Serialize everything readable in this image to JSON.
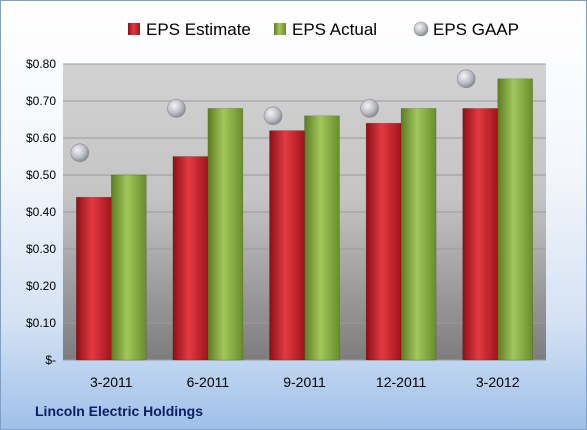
{
  "company": "Lincoln Electric Holdings",
  "chart_data": {
    "type": "bar",
    "title": "",
    "xlabel": "",
    "ylabel": "",
    "categories": [
      "3-2011",
      "6-2011",
      "9-2011",
      "12-2011",
      "3-2012"
    ],
    "series": [
      {
        "name": "EPS Estimate",
        "kind": "bar",
        "color": "#c8202a",
        "values": [
          0.44,
          0.55,
          0.62,
          0.64,
          0.68
        ]
      },
      {
        "name": "EPS Actual",
        "kind": "bar",
        "color": "#86ac3f",
        "values": [
          0.5,
          0.68,
          0.66,
          0.68,
          0.76
        ]
      },
      {
        "name": "EPS GAAP",
        "kind": "marker",
        "color": "#b9bcc2",
        "values": [
          0.56,
          0.68,
          0.66,
          0.68,
          0.76
        ]
      }
    ],
    "ylim": [
      0,
      0.8
    ],
    "yticks": [
      0,
      0.1,
      0.2,
      0.3,
      0.4,
      0.5,
      0.6,
      0.7,
      0.8
    ],
    "ytick_labels": [
      "$-",
      "$0.10",
      "$0.20",
      "$0.30",
      "$0.40",
      "$0.50",
      "$0.60",
      "$0.70",
      "$0.80"
    ],
    "grid": true,
    "legend": "top"
  }
}
